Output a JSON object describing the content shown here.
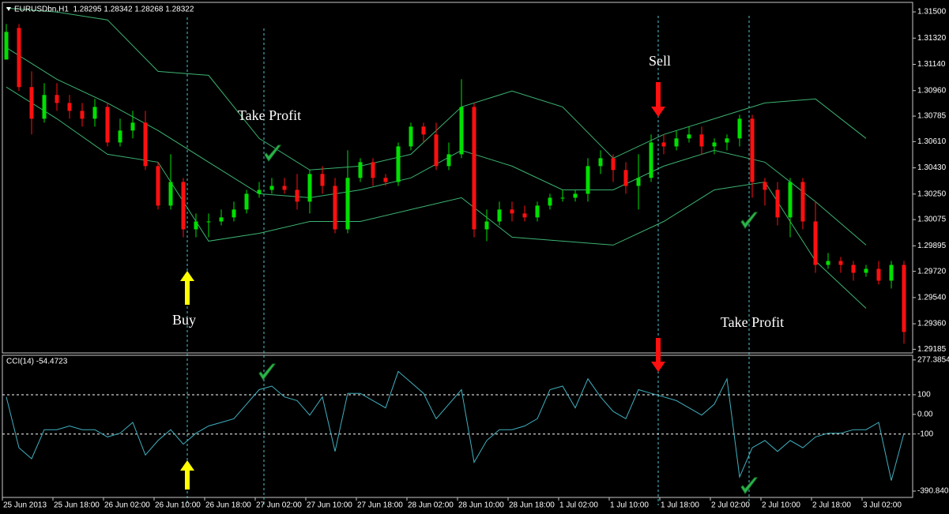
{
  "chart_data": [
    {
      "type": "candlestick",
      "title": "EURUSDbn,H1  1.28295 1.28342 1.28268 1.28322",
      "up_color": "#00e000",
      "down_color": "#ff1010",
      "ohlc": [
        [
          1.31173,
          1.31417,
          1.31173,
          1.31363
        ],
        [
          1.3139,
          1.31417,
          1.30957,
          1.30984
        ],
        [
          1.30984,
          1.31092,
          1.30659,
          1.30767
        ],
        [
          1.30767,
          1.31011,
          1.3074,
          1.3093
        ],
        [
          1.3093,
          1.31011,
          1.30821,
          1.30875
        ],
        [
          1.30875,
          1.3093,
          1.30767,
          1.30821
        ],
        [
          1.30821,
          1.30875,
          1.30713,
          1.30767
        ],
        [
          1.30767,
          1.30903,
          1.30713,
          1.30848
        ],
        [
          1.30848,
          1.30875,
          1.30577,
          1.30604
        ],
        [
          1.30604,
          1.30767,
          1.30577,
          1.30686
        ],
        [
          1.30686,
          1.30821,
          1.30632,
          1.3074
        ],
        [
          1.3074,
          1.30821,
          1.30415,
          1.30442
        ],
        [
          1.30442,
          1.30469,
          1.30144,
          1.30171
        ],
        [
          1.30171,
          1.30523,
          1.30144,
          1.30333
        ],
        [
          1.30333,
          1.30361,
          1.29954,
          1.30008
        ],
        [
          1.30008,
          1.30117,
          1.29954,
          1.30062
        ],
        [
          1.30062,
          1.30117,
          1.29954,
          1.30062
        ],
        [
          1.30062,
          1.30144,
          1.30035,
          1.3009
        ],
        [
          1.3009,
          1.30198,
          1.30062,
          1.30144
        ],
        [
          1.30144,
          1.30279,
          1.30117,
          1.30252
        ],
        [
          1.30252,
          1.30333,
          1.30225,
          1.30279
        ],
        [
          1.30279,
          1.30361,
          1.30252,
          1.30306
        ],
        [
          1.30306,
          1.30361,
          1.30252,
          1.30279
        ],
        [
          1.30279,
          1.30388,
          1.30144,
          1.30198
        ],
        [
          1.30198,
          1.30415,
          1.30117,
          1.30388
        ],
        [
          1.30388,
          1.30442,
          1.30252,
          1.30306
        ],
        [
          1.30306,
          1.30361,
          1.29981,
          1.30008
        ],
        [
          1.30008,
          1.3055,
          1.29981,
          1.30361
        ],
        [
          1.30361,
          1.30496,
          1.30333,
          1.30469
        ],
        [
          1.30469,
          1.30496,
          1.30306,
          1.30361
        ],
        [
          1.30361,
          1.30388,
          1.30306,
          1.30333
        ],
        [
          1.30333,
          1.30604,
          1.30306,
          1.30577
        ],
        [
          1.30577,
          1.3074,
          1.3055,
          1.30713
        ],
        [
          1.30713,
          1.3074,
          1.30604,
          1.30659
        ],
        [
          1.30659,
          1.3074,
          1.30415,
          1.30442
        ],
        [
          1.30442,
          1.30604,
          1.30415,
          1.30523
        ],
        [
          1.30523,
          1.31038,
          1.30496,
          1.30848
        ],
        [
          1.30848,
          1.30875,
          1.29954,
          1.30008
        ],
        [
          1.30008,
          1.30144,
          1.29927,
          1.30062
        ],
        [
          1.30062,
          1.30198,
          1.30035,
          1.30144
        ],
        [
          1.30144,
          1.30198,
          1.30062,
          1.30117
        ],
        [
          1.30117,
          1.30171,
          1.30062,
          1.3009
        ],
        [
          1.3009,
          1.30198,
          1.30062,
          1.30171
        ],
        [
          1.30171,
          1.30252,
          1.30144,
          1.30225
        ],
        [
          1.30225,
          1.30279,
          1.30198,
          1.30225
        ],
        [
          1.30225,
          1.30279,
          1.30198,
          1.30252
        ],
        [
          1.30252,
          1.30496,
          1.30198,
          1.30442
        ],
        [
          1.30442,
          1.3055,
          1.30388,
          1.30496
        ],
        [
          1.30496,
          1.30523,
          1.30333,
          1.30415
        ],
        [
          1.30415,
          1.30469,
          1.30252,
          1.30306
        ],
        [
          1.30306,
          1.30523,
          1.30144,
          1.30361
        ],
        [
          1.30361,
          1.30659,
          1.30333,
          1.30604
        ],
        [
          1.30604,
          1.30659,
          1.30523,
          1.30577
        ],
        [
          1.30577,
          1.30686,
          1.3055,
          1.30632
        ],
        [
          1.30632,
          1.30713,
          1.30604,
          1.30659
        ],
        [
          1.30659,
          1.30713,
          1.30523,
          1.30577
        ],
        [
          1.30577,
          1.30632,
          1.30523,
          1.30604
        ],
        [
          1.30604,
          1.30659,
          1.3055,
          1.30632
        ],
        [
          1.30632,
          1.30794,
          1.30577,
          1.30767
        ],
        [
          1.30767,
          1.30794,
          1.30225,
          1.30333
        ],
        [
          1.30333,
          1.30361,
          1.30171,
          1.30279
        ],
        [
          1.30279,
          1.30333,
          1.30035,
          1.3009
        ],
        [
          1.3009,
          1.30361,
          1.29954,
          1.30333
        ],
        [
          1.30333,
          1.30361,
          1.30008,
          1.30062
        ],
        [
          1.30062,
          1.30198,
          1.2971,
          1.29764
        ],
        [
          1.29764,
          1.29846,
          1.29737,
          1.29791
        ],
        [
          1.29791,
          1.29819,
          1.2971,
          1.29764
        ],
        [
          1.29764,
          1.29791,
          1.29656,
          1.2971
        ],
        [
          1.2971,
          1.29764,
          1.29683,
          1.29737
        ],
        [
          1.29737,
          1.29791,
          1.29629,
          1.29656
        ],
        [
          1.29656,
          1.29791,
          1.29602,
          1.29764
        ],
        [
          1.29764,
          1.29791,
          1.29223,
          1.29304
        ]
      ],
      "bands": [
        {
          "color": "#3cb371",
          "values": [
            1.31526,
            1.31499,
            1.31445,
            1.31092,
            1.31065,
            1.30632,
            1.30415,
            1.30442,
            1.30523,
            1.30848,
            1.30957,
            1.30848,
            1.30496,
            1.30659,
            1.30767,
            1.30875,
            1.30903,
            1.30632
          ]
        },
        {
          "color": "#3cb371",
          "values": [
            1.31255,
            1.31038,
            1.30875,
            1.30686,
            1.30469,
            1.30252,
            1.30225,
            1.30279,
            1.30361,
            1.3055,
            1.30442,
            1.30279,
            1.30279,
            1.30442,
            1.3055,
            1.30469,
            1.30198,
            1.299
          ]
        },
        {
          "color": "#3cb371",
          "values": [
            1.30984,
            1.30767,
            1.30523,
            1.30469,
            1.29927,
            1.29981,
            1.30062,
            1.30062,
            1.30144,
            1.30225,
            1.29954,
            1.29927,
            1.299,
            1.30062,
            1.30279,
            1.30333,
            1.29791,
            1.29466
          ]
        }
      ],
      "ylim": [
        1.2916,
        1.3156
      ],
      "yticks": [
        {
          "value": 1.315,
          "label": "1.31500"
        },
        {
          "value": 1.3132,
          "label": "1.31320"
        },
        {
          "value": 1.3114,
          "label": "1.31140"
        },
        {
          "value": 1.3096,
          "label": "1.30960"
        },
        1.30785,
        {
          "value": 1.3061,
          "label": "1.30610"
        },
        {
          "value": 1.3043,
          "label": "1.30430"
        },
        {
          "value": 1.3025,
          "label": "1.30250"
        },
        1.30075,
        1.29895,
        {
          "value": 1.2972,
          "label": "1.29720"
        },
        {
          "value": 1.2954,
          "label": "1.29540"
        },
        {
          "value": 1.2936,
          "label": "1.29360"
        },
        1.29185
      ],
      "x_labels": [
        "25 Jun 2013",
        "25 Jun 18:00",
        "26 Jun 02:00",
        "26 Jun 10:00",
        "26 Jun 18:00",
        "27 Jun 02:00",
        "27 Jun 10:00",
        "27 Jun 18:00",
        "28 Jun 02:00",
        "28 Jun 10:00",
        "28 Jun 18:00",
        "1 Jul 02:00",
        "1 Jul 10:00",
        "1 Jul 18:00",
        "2 Jul 02:00",
        "2 Jul 10:00",
        "2 Jul 18:00",
        "3 Jul 02:00"
      ],
      "annotations": [
        {
          "text": "Take Profit",
          "color": "#1db31d"
        },
        {
          "text": "Sell",
          "color": "#e01010"
        },
        {
          "text": "Buy",
          "color": "#1db31d"
        },
        {
          "text": "Take Profit",
          "color": "#e01010"
        }
      ]
    },
    {
      "type": "line",
      "title": "CCI(14) -54.4723",
      "color": "#40b0c0",
      "values": [
        89,
        -170,
        -226,
        -78,
        -78,
        -59,
        -78,
        -78,
        -115,
        -96,
        -41,
        -207,
        -133,
        -78,
        -152,
        -96,
        -59,
        -41,
        -22,
        52,
        126,
        144,
        89,
        70,
        -4,
        89,
        -189,
        107,
        107,
        70,
        33,
        219,
        163,
        107,
        -22,
        52,
        126,
        -244,
        -133,
        -78,
        -78,
        -59,
        -22,
        126,
        144,
        33,
        181,
        89,
        15,
        -22,
        126,
        107,
        89,
        70,
        33,
        -4,
        52,
        181,
        -319,
        -170,
        -133,
        -189,
        -133,
        -170,
        -115,
        -96,
        -96,
        -78,
        -78,
        -41,
        -337,
        -96
      ],
      "ylim": [
        -423,
        301
      ],
      "yticks": [
        277.3854,
        100,
        {
          "value": 0,
          "label": "0.00"
        },
        -100,
        -390.8403
      ],
      "levels": [
        100,
        -100
      ],
      "level_color": "#ffffff"
    }
  ]
}
